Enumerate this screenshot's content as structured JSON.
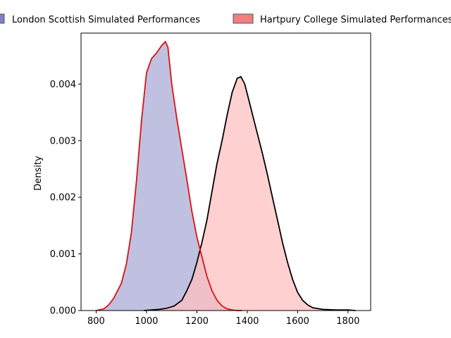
{
  "chart_data": {
    "type": "area",
    "title": "",
    "xlabel": "",
    "ylabel": "Density",
    "xlim": [
      740,
      1890
    ],
    "ylim": [
      0,
      0.0049
    ],
    "xticks": [
      800,
      1000,
      1200,
      1400,
      1600,
      1800
    ],
    "yticks": [
      0.0,
      0.001,
      0.002,
      0.003,
      0.004
    ],
    "ytick_labels": [
      "0.000",
      "0.001",
      "0.002",
      "0.003",
      "0.004"
    ],
    "legend_position": "top (above plot)",
    "grid": false,
    "series": [
      {
        "name": "London Scottish Simulated Performances",
        "fill_color": "#c0c0e0",
        "line_color": "#e01010",
        "legend_color": "#8080c8",
        "x": [
          800,
          830,
          850,
          870,
          900,
          920,
          940,
          960,
          980,
          1000,
          1020,
          1040,
          1060,
          1075,
          1085,
          1100,
          1120,
          1140,
          1160,
          1180,
          1200,
          1220,
          1240,
          1260,
          1280,
          1300,
          1320,
          1340,
          1360,
          1380
        ],
        "y": [
          0.0,
          3e-05,
          0.0001,
          0.00022,
          0.00048,
          0.00082,
          0.00138,
          0.00228,
          0.00335,
          0.0042,
          0.00445,
          0.00455,
          0.00468,
          0.00475,
          0.00465,
          0.004,
          0.0034,
          0.00285,
          0.00232,
          0.00175,
          0.0013,
          0.00095,
          0.0006,
          0.00035,
          0.00018,
          8e-05,
          3e-05,
          1e-05,
          0.0,
          0.0
        ]
      },
      {
        "name": "Hartpury College Simulated Performances",
        "fill_color": "#ffc0c0",
        "line_color": "#000000",
        "legend_color": "#f08080",
        "x": [
          990,
          1020,
          1050,
          1080,
          1110,
          1140,
          1160,
          1180,
          1200,
          1220,
          1240,
          1260,
          1280,
          1300,
          1320,
          1340,
          1360,
          1375,
          1390,
          1410,
          1430,
          1460,
          1480,
          1500,
          1520,
          1540,
          1560,
          1580,
          1600,
          1620,
          1640,
          1660,
          1700,
          1750,
          1800,
          1830
        ],
        "y": [
          0.0,
          1e-05,
          2e-05,
          4e-05,
          8e-05,
          0.00018,
          0.00035,
          0.00055,
          0.00085,
          0.0012,
          0.0016,
          0.0021,
          0.0026,
          0.003,
          0.00345,
          0.00385,
          0.0041,
          0.00413,
          0.004,
          0.00365,
          0.0033,
          0.00278,
          0.0024,
          0.002,
          0.0016,
          0.0012,
          0.00085,
          0.00055,
          0.00032,
          0.00018,
          0.0001,
          5e-05,
          2e-05,
          1e-05,
          1e-05,
          0.0
        ]
      }
    ]
  }
}
